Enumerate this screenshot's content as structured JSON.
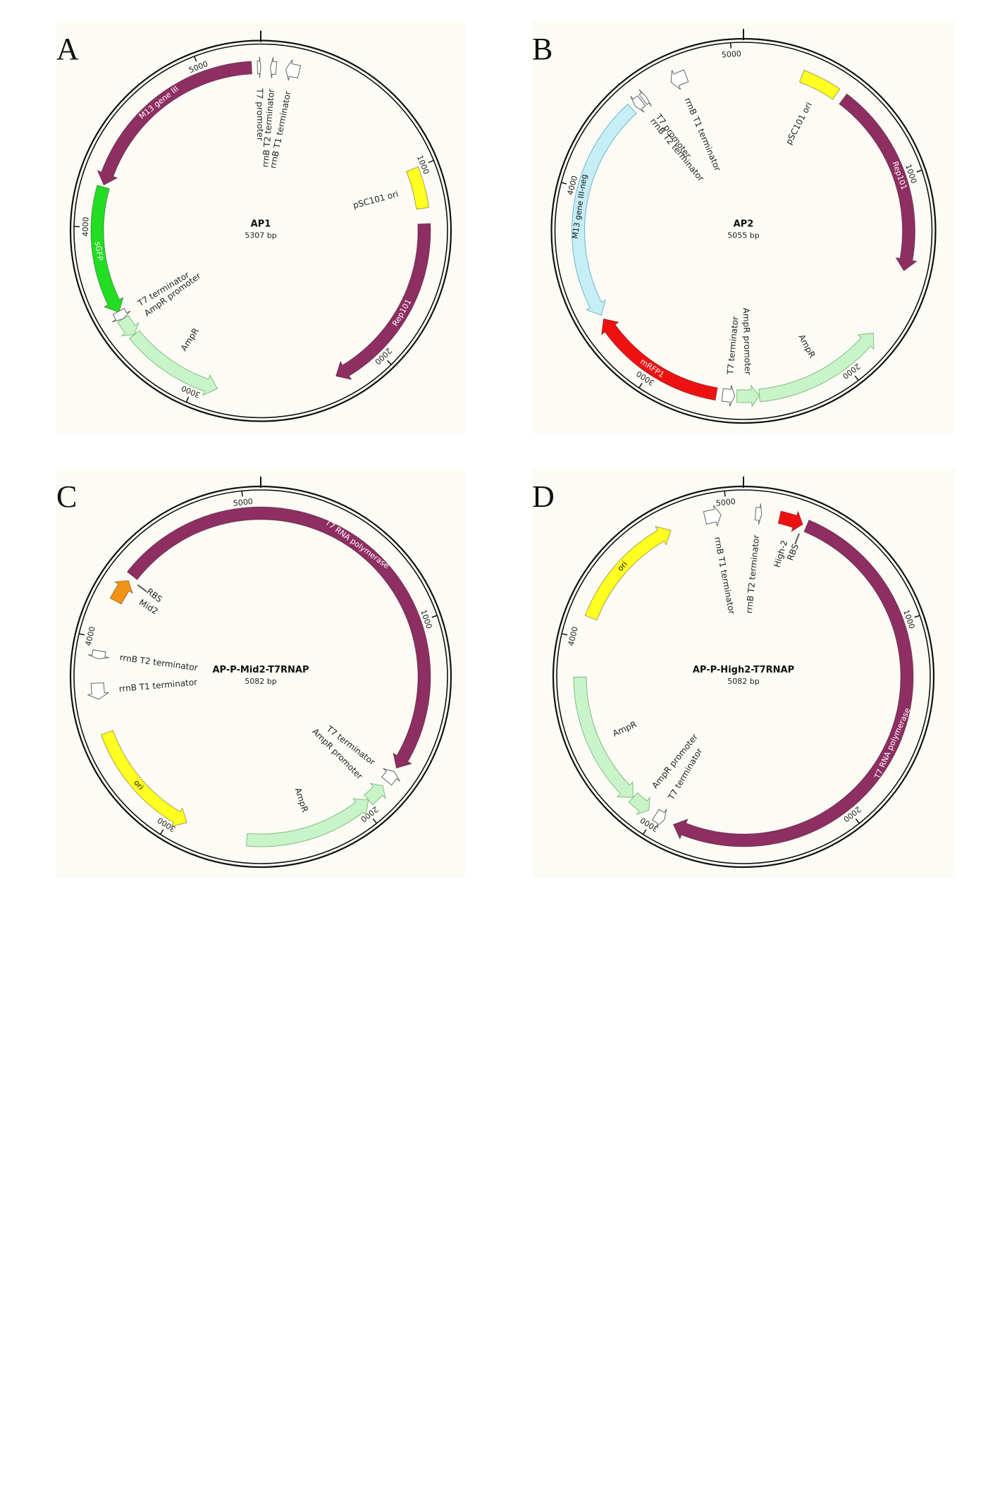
{
  "colors": {
    "background": "#fcfbf5",
    "maroon": "#8e2e62",
    "green": "#22dd22",
    "yellow": "#ffff22",
    "lightgreen": "#c9f3c9",
    "lightblue": "#c5eef6",
    "red": "#ee1111",
    "orange": "#f39214",
    "white": "#ffffff"
  },
  "panels": [
    {
      "id": "A",
      "letter": "A",
      "name": "AP1",
      "size_label": "5307 bp",
      "length": 5307,
      "ticks": [
        {
          "pos": 1000,
          "label": "1000"
        },
        {
          "pos": 2000,
          "label": "2000"
        },
        {
          "pos": 3000,
          "label": "3000"
        },
        {
          "pos": 4000,
          "label": "4000"
        },
        {
          "pos": 5000,
          "label": "5000"
        }
      ],
      "features": [
        {
          "label": "M13 gene III",
          "start": 4220,
          "end": 5260,
          "dir": -1,
          "color": "maroon",
          "text_color": "white",
          "inside_label": true
        },
        {
          "label": "sGFP",
          "start": 3540,
          "end": 4210,
          "dir": -1,
          "color": "green",
          "text_color": "white",
          "inside_label": true
        },
        {
          "label": "pSC101 ori",
          "start": 1000,
          "end": 1210,
          "dir": 0,
          "color": "yellow",
          "text_color": "black",
          "inside_label": false
        },
        {
          "label": "Rep101",
          "start": 1290,
          "end": 2250,
          "dir": 1,
          "color": "maroon",
          "text_color": "white",
          "inside_label": true
        },
        {
          "label": "AmpR",
          "start": 2880,
          "end": 3400,
          "dir": -1,
          "color": "lightgreen",
          "text_color": "black",
          "inside_label": false
        },
        {
          "label": "AmpR promoter",
          "start": 3400,
          "end": 3500,
          "dir": -1,
          "color": "lightgreen",
          "text_color": "black",
          "inside_label": false
        },
        {
          "label": "T7 terminator",
          "start": 3500,
          "end": 3545,
          "dir": -1,
          "color": "white",
          "text_color": "black",
          "inside_label": false
        },
        {
          "label": "rrnB T1 terminator",
          "start": 130,
          "end": 200,
          "dir": -1,
          "color": "white",
          "text_color": "black",
          "inside_label": false
        },
        {
          "label": "rrnB T2 terminator",
          "start": 50,
          "end": 80,
          "dir": -1,
          "color": "white",
          "text_color": "black",
          "inside_label": false
        },
        {
          "label": "T7 promoter",
          "start": 5290,
          "end": 5307,
          "dir": 1,
          "color": "white",
          "text_color": "black",
          "inside_label": false
        }
      ]
    },
    {
      "id": "B",
      "letter": "B",
      "name": "AP2",
      "size_label": "5055 bp",
      "length": 5055,
      "ticks": [
        {
          "pos": 1000,
          "label": "1000"
        },
        {
          "pos": 2000,
          "label": "2000"
        },
        {
          "pos": 3000,
          "label": "3000"
        },
        {
          "pos": 4000,
          "label": "4000"
        },
        {
          "pos": 5000,
          "label": "5000"
        }
      ],
      "features": [
        {
          "label": "pSC101 ori",
          "start": 290,
          "end": 480,
          "dir": 0,
          "color": "yellow",
          "text_color": "black",
          "inside_label": false
        },
        {
          "label": "Rep101",
          "start": 520,
          "end": 1460,
          "dir": 1,
          "color": "maroon",
          "text_color": "white",
          "inside_label": true
        },
        {
          "label": "AmpR",
          "start": 1800,
          "end": 2450,
          "dir": -1,
          "color": "lightgreen",
          "text_color": "black",
          "inside_label": false
        },
        {
          "label": "AmpR promoter",
          "start": 2450,
          "end": 2560,
          "dir": -1,
          "color": "lightgreen",
          "text_color": "black",
          "inside_label": false
        },
        {
          "label": "T7 terminator",
          "start": 2570,
          "end": 2630,
          "dir": -1,
          "color": "white",
          "text_color": "black",
          "inside_label": false
        },
        {
          "label": "mRFP1",
          "start": 2660,
          "end": 3340,
          "dir": 1,
          "color": "red",
          "text_color": "white",
          "inside_label": true
        },
        {
          "label": "M13 gene III-neg",
          "start": 3360,
          "end": 4460,
          "dir": -1,
          "color": "lightblue",
          "text_color": "black",
          "inside_label": true
        },
        {
          "label": "rrnB T2 terminator",
          "start": 4480,
          "end": 4520,
          "dir": -1,
          "color": "white",
          "text_color": "black",
          "inside_label": false
        },
        {
          "label": "rrnB T1 terminator",
          "start": 4690,
          "end": 4770,
          "dir": -1,
          "color": "white",
          "text_color": "black",
          "inside_label": false
        },
        {
          "label": "T7 promoter",
          "start": 4530,
          "end": 4550,
          "dir": 1,
          "color": "white",
          "text_color": "black",
          "inside_label": false
        }
      ]
    },
    {
      "id": "C",
      "letter": "C",
      "name": "AP-P-Mid2-T7RNAP",
      "size_label": "5082 bp",
      "length": 5082,
      "ticks": [
        {
          "pos": 1000,
          "label": "1000"
        },
        {
          "pos": 2000,
          "label": "2000"
        },
        {
          "pos": 3000,
          "label": "3000"
        },
        {
          "pos": 4000,
          "label": "4000"
        },
        {
          "pos": 5000,
          "label": "5000"
        }
      ],
      "features": [
        {
          "label": "T7 RNA polymerase",
          "start": 4350,
          "end": 1750,
          "dir": 1,
          "color": "maroon",
          "text_color": "white",
          "inside_label": true
        },
        {
          "label": "T7 terminator",
          "start": 1770,
          "end": 1830,
          "dir": -1,
          "color": "white",
          "text_color": "black",
          "inside_label": false
        },
        {
          "label": "AmpR promoter",
          "start": 1860,
          "end": 1960,
          "dir": -1,
          "color": "lightgreen",
          "text_color": "black",
          "inside_label": false
        },
        {
          "label": "AmpR",
          "start": 1960,
          "end": 2610,
          "dir": -1,
          "color": "lightgreen",
          "text_color": "black",
          "inside_label": false
        },
        {
          "label": "ori",
          "start": 2920,
          "end": 3530,
          "dir": -1,
          "color": "yellow",
          "text_color": "black",
          "inside_label": true
        },
        {
          "label": "rrnB T1 terminator",
          "start": 3700,
          "end": 3780,
          "dir": -1,
          "color": "white",
          "text_color": "black",
          "inside_label": false
        },
        {
          "label": "rrnB T2 terminator",
          "start": 3900,
          "end": 3940,
          "dir": -1,
          "color": "white",
          "text_color": "black",
          "inside_label": false
        },
        {
          "label": "Mid2",
          "start": 4200,
          "end": 4320,
          "dir": 1,
          "color": "orange",
          "text_color": "black",
          "inside_label": false
        },
        {
          "label": "RBS",
          "start": 4330,
          "end": 4345,
          "dir": 0,
          "color": "white",
          "text_color": "black",
          "inside_label": false
        }
      ]
    },
    {
      "id": "D",
      "letter": "D",
      "name": "AP-P-High2-T7RNAP",
      "size_label": "5082 bp",
      "length": 5082,
      "ticks": [
        {
          "pos": 1000,
          "label": "1000"
        },
        {
          "pos": 2000,
          "label": "2000"
        },
        {
          "pos": 3000,
          "label": "3000"
        },
        {
          "pos": 4000,
          "label": "4000"
        },
        {
          "pos": 5000,
          "label": "5000"
        }
      ],
      "features": [
        {
          "label": "High-2",
          "start": 180,
          "end": 300,
          "dir": 1,
          "color": "red",
          "text_color": "black",
          "inside_label": false
        },
        {
          "label": "RBS",
          "start": 300,
          "end": 315,
          "dir": 0,
          "color": "white",
          "text_color": "black",
          "inside_label": false
        },
        {
          "label": "T7 RNA polymerase",
          "start": 320,
          "end": 2900,
          "dir": 1,
          "color": "maroon",
          "text_color": "white",
          "inside_label": true
        },
        {
          "label": "T7 terminator",
          "start": 2950,
          "end": 3000,
          "dir": -1,
          "color": "white",
          "text_color": "black",
          "inside_label": false
        },
        {
          "label": "AmpR promoter",
          "start": 3040,
          "end": 3140,
          "dir": -1,
          "color": "lightgreen",
          "text_color": "black",
          "inside_label": false
        },
        {
          "label": "AmpR",
          "start": 3140,
          "end": 3810,
          "dir": -1,
          "color": "lightgreen",
          "text_color": "black",
          "inside_label": false
        },
        {
          "label": "ori",
          "start": 4110,
          "end": 4710,
          "dir": 1,
          "color": "yellow",
          "text_color": "black",
          "inside_label": true
        },
        {
          "label": "rrnB T1 terminator",
          "start": 4890,
          "end": 4970,
          "dir": 1,
          "color": "white",
          "text_color": "black",
          "inside_label": false
        },
        {
          "label": "rrnB T2 terminator",
          "start": 60,
          "end": 90,
          "dir": 1,
          "color": "white",
          "text_color": "black",
          "inside_label": false
        }
      ]
    }
  ]
}
